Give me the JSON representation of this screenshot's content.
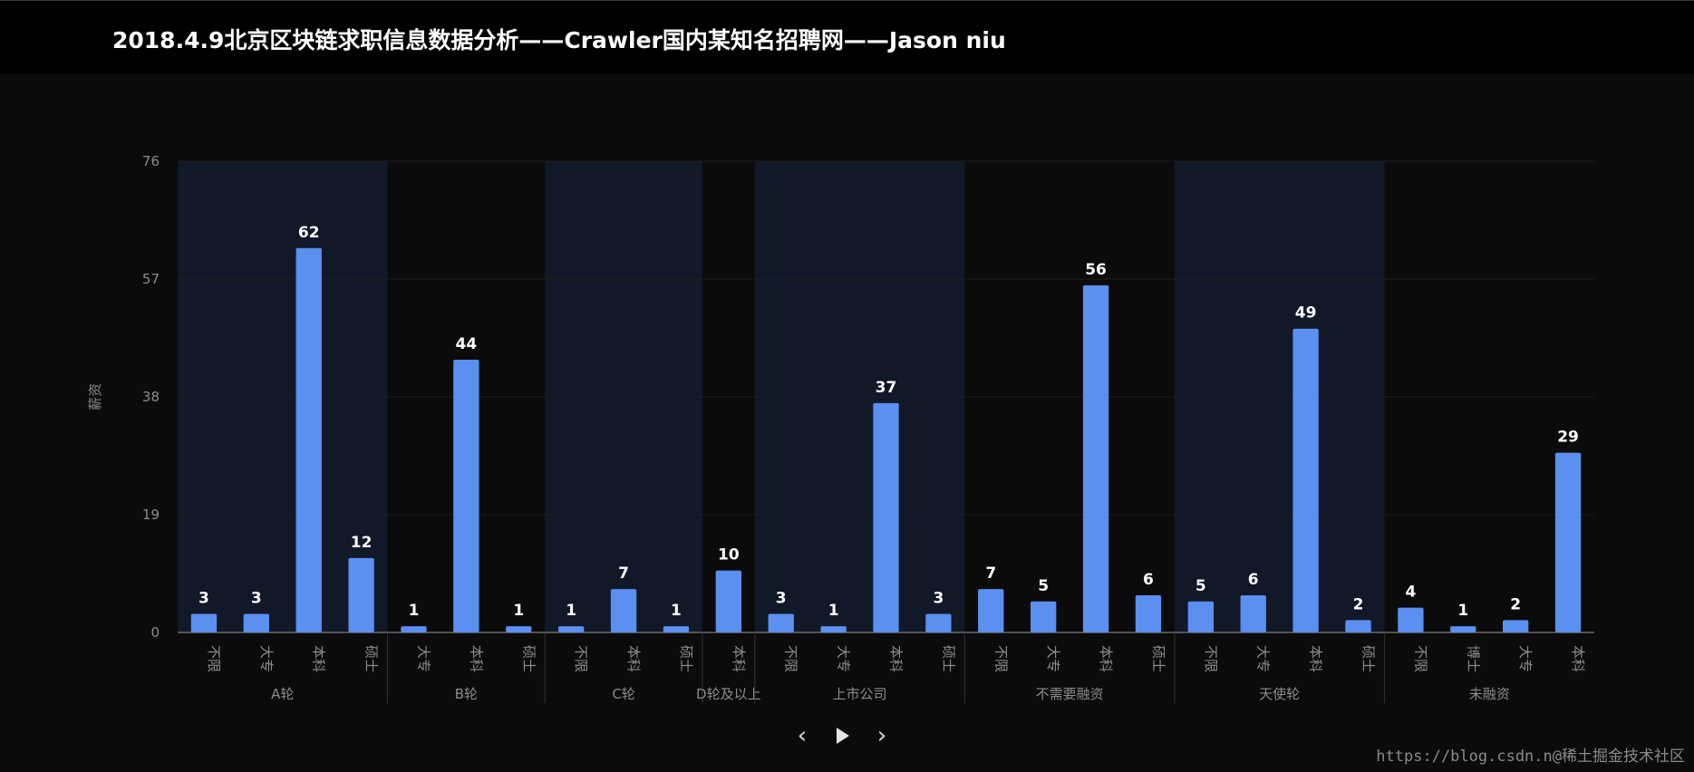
{
  "page": {
    "title": "2018.4.9北京区块链求职信息数据分析——Crawler国内某知名招聘网——Jason niu",
    "watermark": "https://blog.csdn.n@稀土掘金技术社区"
  },
  "controls": {
    "prev_icon": "chevron-left-icon",
    "play_icon": "play-icon",
    "next_icon": "chevron-right-icon"
  },
  "colors": {
    "bar": "#5b8ff0",
    "label": "#ffffff",
    "axis_text": "#8c8c8c",
    "band": "#111827",
    "background": "#0b0b0c"
  },
  "chart_data": {
    "type": "bar",
    "ylabel": "薪资",
    "xlabel": "",
    "ylim": [
      0,
      76
    ],
    "yticks": [
      0,
      19,
      38,
      57,
      76
    ],
    "grid": true,
    "groups": [
      {
        "name": "A轮",
        "items": [
          {
            "label": "不限",
            "value": 3
          },
          {
            "label": "大专",
            "value": 3
          },
          {
            "label": "本科",
            "value": 62
          },
          {
            "label": "硕士",
            "value": 12
          }
        ]
      },
      {
        "name": "B轮",
        "items": [
          {
            "label": "大专",
            "value": 1
          },
          {
            "label": "本科",
            "value": 44
          },
          {
            "label": "硕士",
            "value": 1
          }
        ]
      },
      {
        "name": "C轮",
        "items": [
          {
            "label": "不限",
            "value": 1
          },
          {
            "label": "本科",
            "value": 7
          },
          {
            "label": "硕士",
            "value": 1
          }
        ]
      },
      {
        "name": "D轮及以上",
        "items": [
          {
            "label": "本科",
            "value": 10
          }
        ]
      },
      {
        "name": "上市公司",
        "items": [
          {
            "label": "不限",
            "value": 3
          },
          {
            "label": "大专",
            "value": 1
          },
          {
            "label": "本科",
            "value": 37
          },
          {
            "label": "硕士",
            "value": 3
          }
        ]
      },
      {
        "name": "不需要融资",
        "items": [
          {
            "label": "不限",
            "value": 7
          },
          {
            "label": "大专",
            "value": 5
          },
          {
            "label": "本科",
            "value": 56
          },
          {
            "label": "硕士",
            "value": 6
          }
        ]
      },
      {
        "name": "天使轮",
        "items": [
          {
            "label": "不限",
            "value": 5
          },
          {
            "label": "大专",
            "value": 6
          },
          {
            "label": "本科",
            "value": 49
          },
          {
            "label": "硕士",
            "value": 2
          }
        ]
      },
      {
        "name": "未融资",
        "items": [
          {
            "label": "不限",
            "value": 4
          },
          {
            "label": "博士",
            "value": 1
          },
          {
            "label": "大专",
            "value": 2
          },
          {
            "label": "本科",
            "value": 29
          }
        ]
      }
    ]
  }
}
